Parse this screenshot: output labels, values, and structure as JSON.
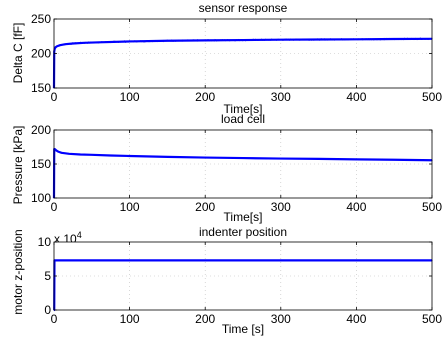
{
  "chart_data": [
    {
      "type": "line",
      "title": "sensor response",
      "xlabel": "Time[s]",
      "ylabel": "Delta C [fF]",
      "xlim": [
        0,
        500
      ],
      "ylim": [
        150,
        250
      ],
      "xticks": [
        "0",
        "100",
        "200",
        "300",
        "400",
        "500"
      ],
      "yticks": [
        "150",
        "200",
        "250"
      ],
      "grid": true,
      "series": [
        {
          "color": "#0000ff",
          "x": [
            0,
            0.3,
            1,
            2,
            4,
            8,
            15,
            25,
            40,
            60,
            100,
            150,
            200,
            250,
            300,
            350,
            400,
            450,
            500
          ],
          "y": [
            150,
            203,
            207,
            209,
            210.5,
            212,
            213.5,
            214.5,
            215.5,
            216.2,
            217.5,
            218.5,
            219,
            219.5,
            220,
            220.3,
            220.6,
            221,
            221.3
          ]
        }
      ]
    },
    {
      "type": "line",
      "title": "load cell",
      "xlabel": "Time[s]",
      "ylabel": "Pressure [kPa]",
      "xlim": [
        0,
        500
      ],
      "ylim": [
        100,
        200
      ],
      "xticks": [
        "0",
        "100",
        "200",
        "300",
        "400",
        "500"
      ],
      "yticks": [
        "100",
        "150",
        "200"
      ],
      "grid": true,
      "series": [
        {
          "color": "#0000ff",
          "x": [
            0,
            0.3,
            1,
            3,
            6,
            10,
            20,
            35,
            50,
            75,
            100,
            150,
            200,
            250,
            300,
            350,
            400,
            450,
            500
          ],
          "y": [
            100,
            172,
            172,
            170,
            168,
            166.5,
            165,
            164,
            163.5,
            162.5,
            161.8,
            160.5,
            159.5,
            158.7,
            158,
            157.5,
            156.8,
            156.2,
            155.5
          ]
        }
      ]
    },
    {
      "type": "line",
      "title": "indenter position",
      "xlabel": "Time [s]",
      "ylabel": "motor z-position",
      "y_exponent_label": "x 10",
      "y_exponent": "4",
      "xlim": [
        0,
        500
      ],
      "ylim": [
        0,
        10
      ],
      "xticks": [
        "0",
        "100",
        "200",
        "300",
        "400",
        "500"
      ],
      "yticks": [
        "0",
        "5",
        "10"
      ],
      "grid": true,
      "series": [
        {
          "color": "#0000ff",
          "x": [
            0,
            0.3,
            0.6,
            500
          ],
          "y": [
            0,
            0,
            7.3,
            7.3
          ]
        }
      ]
    }
  ]
}
